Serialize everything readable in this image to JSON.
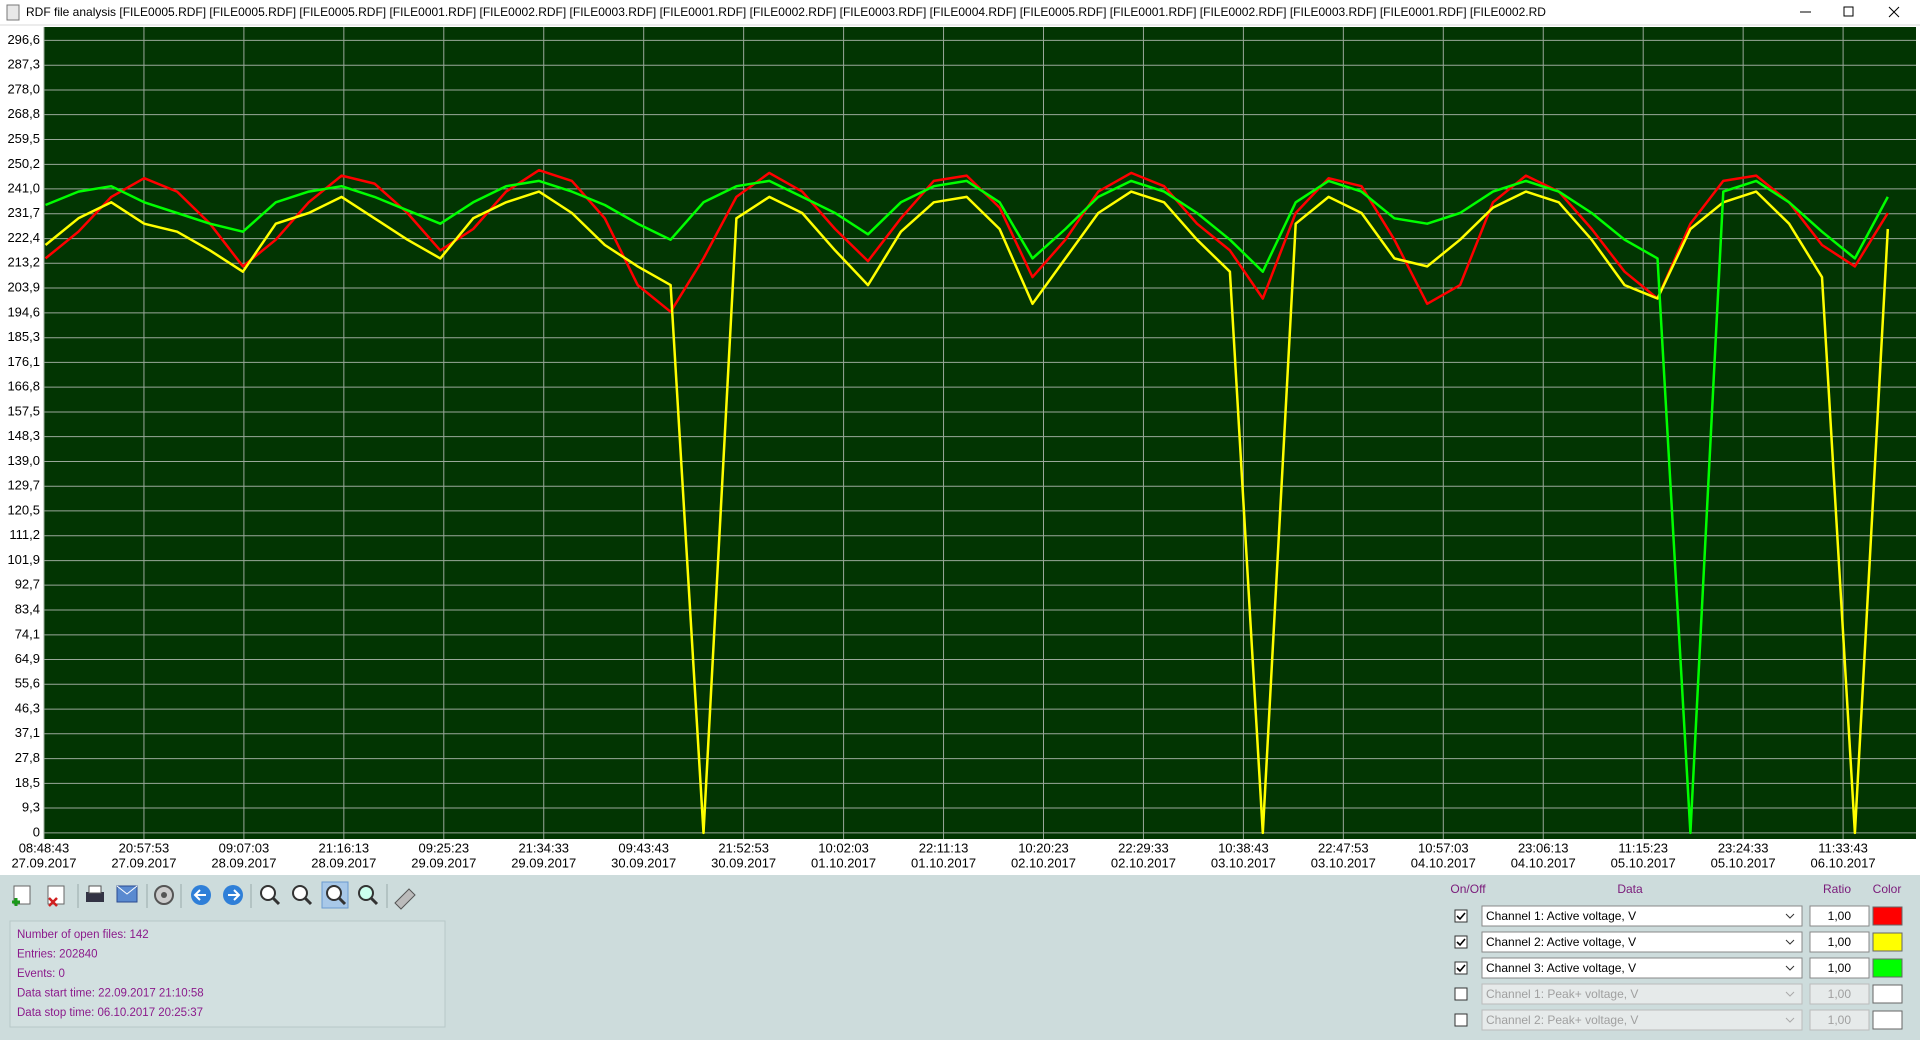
{
  "window": {
    "title": "RDF file analysis [FILE0005.RDF] [FILE0005.RDF] [FILE0005.RDF] [FILE0001.RDF] [FILE0002.RDF] [FILE0003.RDF] [FILE0001.RDF] [FILE0002.RDF] [FILE0003.RDF] [FILE0004.RDF] [FILE0005.RDF] [FILE0001.RDF] [FILE0002.RDF] [FILE0003.RDF] [FILE0001.RDF] [FILE0002.RD"
  },
  "chart_data": {
    "type": "line",
    "background": "#023502",
    "grid": true,
    "xlim": [
      "27.09.2017 08:48:43",
      "06.10.2017 20:25:37"
    ],
    "xticks": [
      {
        "time": "08:48:43",
        "date": "27.09.2017"
      },
      {
        "time": "20:57:53",
        "date": "27.09.2017"
      },
      {
        "time": "09:07:03",
        "date": "28.09.2017"
      },
      {
        "time": "21:16:13",
        "date": "28.09.2017"
      },
      {
        "time": "09:25:23",
        "date": "29.09.2017"
      },
      {
        "time": "21:34:33",
        "date": "29.09.2017"
      },
      {
        "time": "09:43:43",
        "date": "30.09.2017"
      },
      {
        "time": "21:52:53",
        "date": "30.09.2017"
      },
      {
        "time": "10:02:03",
        "date": "01.10.2017"
      },
      {
        "time": "22:11:13",
        "date": "01.10.2017"
      },
      {
        "time": "10:20:23",
        "date": "02.10.2017"
      },
      {
        "time": "22:29:33",
        "date": "02.10.2017"
      },
      {
        "time": "10:38:43",
        "date": "03.10.2017"
      },
      {
        "time": "22:47:53",
        "date": "03.10.2017"
      },
      {
        "time": "10:57:03",
        "date": "04.10.2017"
      },
      {
        "time": "23:06:13",
        "date": "04.10.2017"
      },
      {
        "time": "11:15:23",
        "date": "05.10.2017"
      },
      {
        "time": "23:24:33",
        "date": "05.10.2017"
      },
      {
        "time": "11:33:43",
        "date": "06.10.2017"
      }
    ],
    "ylim": [
      -2.3,
      301.6
    ],
    "yticks": [
      0,
      {
        "value": 9.3,
        "label": "9,3"
      },
      {
        "value": 18.5,
        "label": "18,5"
      },
      {
        "value": 27.8,
        "label": "27,8"
      },
      {
        "value": 37.1,
        "label": "37,1"
      },
      {
        "value": 46.3,
        "label": "46,3"
      },
      {
        "value": 55.6,
        "label": "55,6"
      },
      {
        "value": 64.9,
        "label": "64,9"
      },
      {
        "value": 74.1,
        "label": "74,1"
      },
      {
        "value": 83.4,
        "label": "83,4"
      },
      {
        "value": 92.7,
        "label": "92,7"
      },
      {
        "value": 101.9,
        "label": "101,9"
      },
      {
        "value": 111.2,
        "label": "111,2"
      },
      {
        "value": 120.5,
        "label": "120,5"
      },
      {
        "value": 129.7,
        "label": "129,7"
      },
      {
        "value": 139.0,
        "label": "139,0"
      },
      {
        "value": 148.3,
        "label": "148,3"
      },
      {
        "value": 157.5,
        "label": "157,5"
      },
      {
        "value": 166.8,
        "label": "166,8"
      },
      {
        "value": 176.1,
        "label": "176,1"
      },
      {
        "value": 185.3,
        "label": "185,3"
      },
      {
        "value": 194.6,
        "label": "194,6"
      },
      {
        "value": 203.9,
        "label": "203,9"
      },
      {
        "value": 213.2,
        "label": "213,2"
      },
      {
        "value": 222.4,
        "label": "222,4"
      },
      {
        "value": 231.7,
        "label": "231,7"
      },
      {
        "value": 241.0,
        "label": "241,0"
      },
      {
        "value": 250.2,
        "label": "250,2"
      },
      {
        "value": 259.5,
        "label": "259,5"
      },
      {
        "value": 268.8,
        "label": "268,8"
      },
      {
        "value": 278.0,
        "label": "278,0"
      },
      {
        "value": 287.3,
        "label": "287,3"
      },
      {
        "value": 296.6,
        "label": "296,6"
      }
    ],
    "x": [
      "27.09.2017 09:00",
      "27.09.2017 13:00",
      "27.09.2017 17:00",
      "27.09.2017 21:00",
      "28.09.2017 01:00",
      "28.09.2017 05:00",
      "28.09.2017 09:00",
      "28.09.2017 13:00",
      "28.09.2017 17:00",
      "28.09.2017 21:00",
      "29.09.2017 01:00",
      "29.09.2017 05:00",
      "29.09.2017 09:00",
      "29.09.2017 13:00",
      "29.09.2017 17:00",
      "29.09.2017 21:00",
      "30.09.2017 01:00",
      "30.09.2017 05:00",
      "30.09.2017 09:00",
      "30.09.2017 13:00",
      "30.09.2017 17:00",
      "30.09.2017 21:00",
      "01.10.2017 01:00",
      "01.10.2017 05:00",
      "01.10.2017 09:00",
      "01.10.2017 13:00",
      "01.10.2017 17:00",
      "01.10.2017 21:00",
      "02.10.2017 01:00",
      "02.10.2017 05:00",
      "02.10.2017 09:00",
      "02.10.2017 13:00",
      "02.10.2017 17:00",
      "02.10.2017 21:00",
      "03.10.2017 01:00",
      "03.10.2017 05:00",
      "03.10.2017 09:00",
      "03.10.2017 13:00",
      "03.10.2017 17:00",
      "03.10.2017 21:00",
      "04.10.2017 01:00",
      "04.10.2017 05:00",
      "04.10.2017 09:00",
      "04.10.2017 13:00",
      "04.10.2017 17:00",
      "04.10.2017 21:00",
      "05.10.2017 01:00",
      "05.10.2017 05:00",
      "05.10.2017 09:00",
      "05.10.2017 13:00",
      "05.10.2017 17:00",
      "05.10.2017 21:00",
      "06.10.2017 01:00",
      "06.10.2017 05:00",
      "06.10.2017 09:00",
      "06.10.2017 13:00",
      "06.10.2017 17:00"
    ],
    "series": [
      {
        "name": "Channel 1: Active voltage, V",
        "color": "#ff0000",
        "visible": true,
        "ratio": "1,00",
        "values": [
          215,
          225,
          238,
          245,
          240,
          228,
          212,
          222,
          236,
          246,
          243,
          232,
          218,
          226,
          240,
          248,
          244,
          230,
          205,
          195,
          215,
          238,
          247,
          240,
          226,
          214,
          230,
          244,
          246,
          234,
          208,
          222,
          240,
          247,
          242,
          228,
          218,
          200,
          232,
          245,
          242,
          222,
          198,
          205,
          236,
          246,
          240,
          226,
          210,
          200,
          228,
          244,
          246,
          236,
          220,
          212,
          232
        ]
      },
      {
        "name": "Channel 2: Active voltage, V",
        "color": "#ffff00",
        "visible": true,
        "ratio": "1,00",
        "values": [
          220,
          230,
          236,
          228,
          225,
          218,
          210,
          228,
          232,
          238,
          230,
          222,
          215,
          230,
          236,
          240,
          232,
          220,
          212,
          205,
          0,
          230,
          238,
          232,
          218,
          205,
          225,
          236,
          238,
          226,
          198,
          215,
          232,
          240,
          236,
          222,
          210,
          0,
          228,
          238,
          232,
          215,
          212,
          222,
          234,
          240,
          236,
          222,
          205,
          200,
          226,
          236,
          240,
          228,
          208,
          0,
          226
        ]
      },
      {
        "name": "Channel 3: Active voltage, V",
        "color": "#00ff00",
        "visible": true,
        "ratio": "1,00",
        "values": [
          235,
          240,
          242,
          236,
          232,
          228,
          225,
          236,
          240,
          242,
          238,
          233,
          228,
          236,
          242,
          244,
          240,
          235,
          228,
          222,
          236,
          242,
          244,
          238,
          232,
          224,
          236,
          242,
          244,
          236,
          215,
          226,
          238,
          244,
          240,
          232,
          222,
          210,
          236,
          244,
          240,
          230,
          228,
          232,
          240,
          244,
          240,
          232,
          222,
          215,
          0,
          240,
          244,
          236,
          225,
          215,
          238
        ]
      }
    ]
  },
  "panel": {
    "headers": [
      "On/Off",
      "Data",
      "Ratio",
      "Color"
    ],
    "inactive": [
      {
        "name": "Channel 1: Peak+ voltage, V",
        "ratio": "1,00",
        "visible": false,
        "color": "#ffffff"
      },
      {
        "name": "Channel 2: Peak+ voltage, V",
        "ratio": "1,00",
        "visible": false,
        "color": "#ffffff"
      }
    ]
  },
  "info": {
    "lines": [
      "Number of open files: 142",
      "Entries: 202840",
      "Events: 0",
      "Data start time: 22.09.2017 21:10:58",
      "Data stop time: 06.10.2017 20:25:37"
    ]
  }
}
